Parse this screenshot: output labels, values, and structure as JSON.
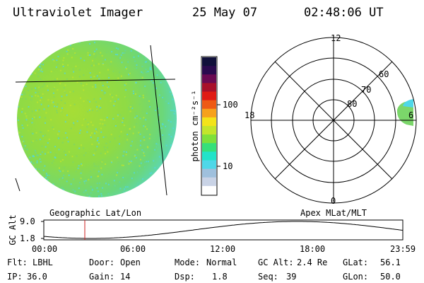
{
  "header": {
    "instrument": "Ultraviolet Imager",
    "date": "25 May 07",
    "time": "02:48:06 UT"
  },
  "colorbar": {
    "unit_label": "photon cm⁻²s⁻¹",
    "ticks": [
      {
        "label": "100",
        "value": 100
      },
      {
        "label": "10",
        "value": 10
      }
    ],
    "colors": [
      "#ffffff",
      "#c9d3e6",
      "#9fc0dd",
      "#4fd7e8",
      "#22e3c9",
      "#35e07a",
      "#7ee03a",
      "#c3e52b",
      "#f3e31a",
      "#f6a11c",
      "#ee5a14",
      "#e01a14",
      "#a8102a",
      "#6a0a52",
      "#2a0a4e",
      "#10103a"
    ]
  },
  "polar_plot": {
    "mlt_labels": [
      "12",
      "18",
      "0",
      "6"
    ],
    "mlat_labels": [
      "60",
      "70",
      "80"
    ]
  },
  "map_labels": {
    "left": "Geographic Lat/Lon",
    "right": "Apex MLat/MLT"
  },
  "altitude_plot": {
    "ylabel": "GC Alt",
    "yticks": [
      "9.0",
      "1.8"
    ],
    "xticks": [
      "00:00",
      "06:00",
      "12:00",
      "18:00",
      "23:59"
    ],
    "current_marker_time": "02:48"
  },
  "status": {
    "flt_label": "Flt:",
    "flt_value": "LBHL",
    "ip_label": "IP:",
    "ip_value": "36.0",
    "door_label": "Door:",
    "door_value": "Open",
    "gain_label": "Gain:",
    "gain_value": "14",
    "mode_label": "Mode:",
    "mode_value": "Normal",
    "dsp_label": "Dsp:",
    "dsp_value": "1.8",
    "gcalt_label": "GC Alt:",
    "gcalt_value": "2.4 Re",
    "seq_label": "Seq:",
    "seq_value": "39",
    "glat_label": "GLat:",
    "glat_value": "56.1",
    "glon_label": "GLon:",
    "glon_value": "50.0"
  },
  "colors": {
    "disk_green": "#7bd66a",
    "disk_cyan": "#4fd7e8",
    "disk_yellow": "#c3e52b",
    "marker_red": "#cc2222"
  }
}
